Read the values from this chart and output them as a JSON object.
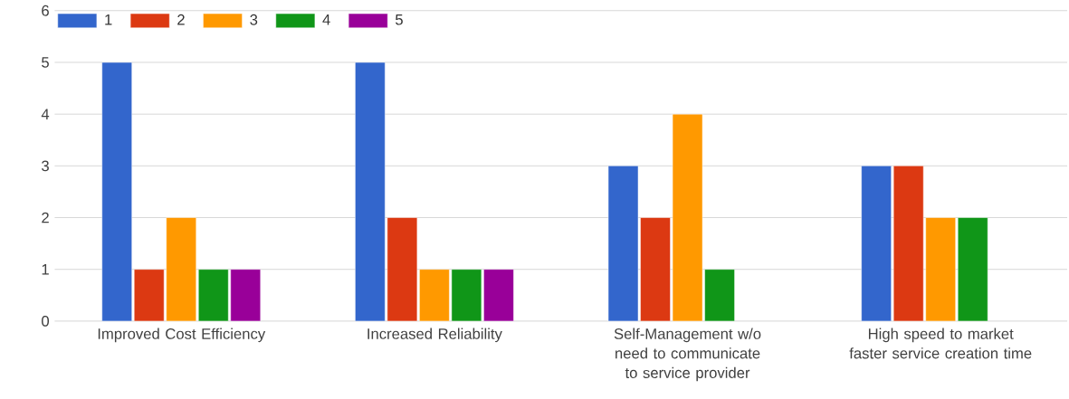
{
  "chart_data": {
    "type": "bar",
    "categories": [
      "Improved Cost Efficiency",
      "Increased Reliability",
      "Self-Management w/o need to communicate to service provider",
      "High speed to market faster service creation time"
    ],
    "series": [
      {
        "name": "1",
        "color": "#3366cc",
        "values": [
          5,
          5,
          3,
          3
        ]
      },
      {
        "name": "2",
        "color": "#dc3912",
        "values": [
          1,
          2,
          2,
          3
        ]
      },
      {
        "name": "3",
        "color": "#ff9900",
        "values": [
          2,
          1,
          4,
          2
        ]
      },
      {
        "name": "4",
        "color": "#109618",
        "values": [
          1,
          1,
          1,
          2
        ]
      },
      {
        "name": "5",
        "color": "#990099",
        "values": [
          1,
          1,
          null,
          null
        ]
      }
    ],
    "ylim": [
      0,
      6
    ],
    "yticks": [
      0,
      1,
      2,
      3,
      4,
      5,
      6
    ],
    "grid": "y",
    "legend": "top left"
  }
}
